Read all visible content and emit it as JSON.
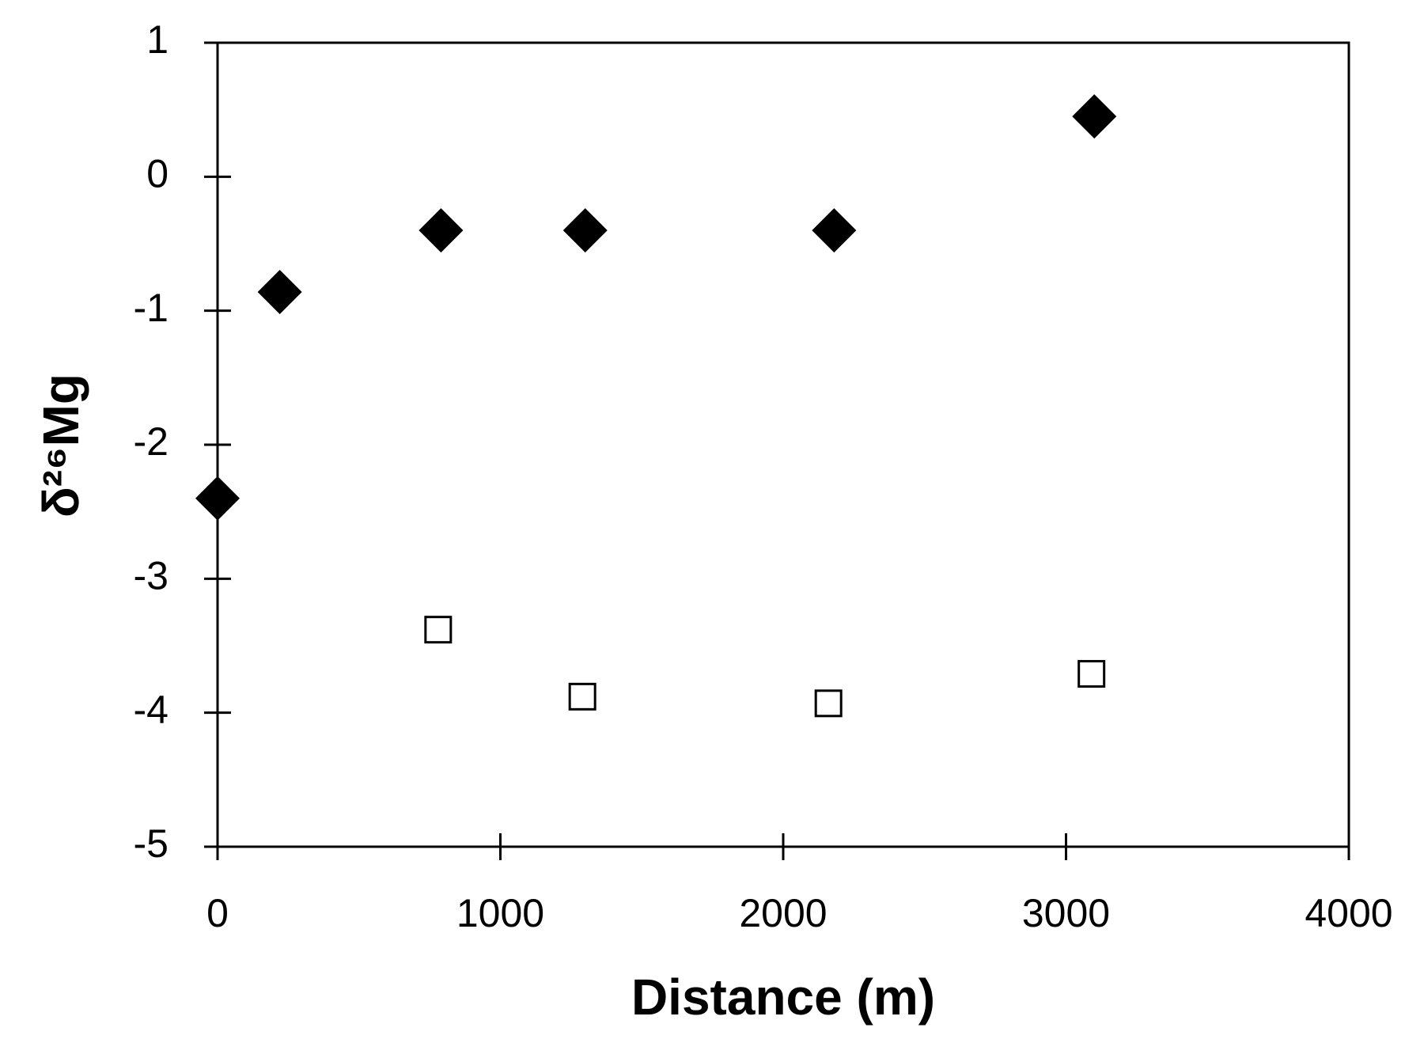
{
  "chart_data": {
    "type": "scatter",
    "xlabel": "Distance (m)",
    "ylabel": "δ²⁶Mg",
    "xlim": [
      0,
      4000
    ],
    "xticks": [
      0,
      1000,
      2000,
      3000,
      4000
    ],
    "ylim": [
      -5,
      1
    ],
    "yticks": [
      -5,
      -4,
      -3,
      -2,
      -1,
      0,
      1
    ],
    "grid": false,
    "series": [
      {
        "color": "#000000",
        "marker": "diamond",
        "x": [
          0,
          220,
          790,
          1300,
          2180,
          3100
        ],
        "values": [
          -2.4,
          -0.86,
          -0.4,
          -0.4,
          -0.4,
          0.45
        ]
      },
      {
        "color": "#000000",
        "marker": "open-square",
        "x": [
          780,
          1290,
          2160,
          3090
        ],
        "values": [
          -3.38,
          -3.88,
          -3.93,
          -3.71
        ]
      }
    ]
  }
}
